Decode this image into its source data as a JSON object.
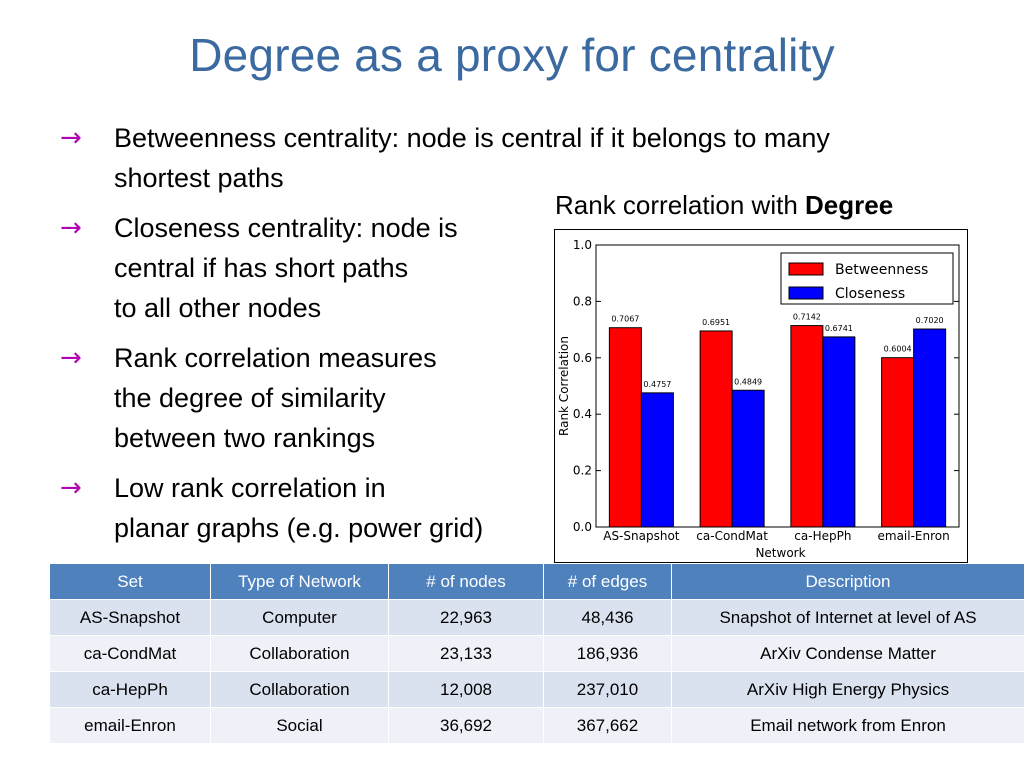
{
  "slide": {
    "title": "Degree as a proxy for centrality",
    "bullets": [
      {
        "lines": [
          "Betweenness centrality: node is central if it belongs to many",
          "shortest paths"
        ]
      },
      {
        "lines": [
          "Closeness centrality: node is",
          "central if has short paths",
          "to all other nodes"
        ]
      },
      {
        "lines": [
          "Rank correlation measures",
          "the degree of similarity",
          "between two rankings"
        ]
      },
      {
        "lines": [
          "Low rank correlation in",
          "planar graphs (e.g. power grid)"
        ]
      }
    ],
    "bullet_icon": "arrow-icon",
    "bullet_arrow_glyph": "→",
    "bullet_color": "#b400b4",
    "chart_caption_prefix": "Rank correlation with ",
    "chart_caption_bold": "Degree"
  },
  "chart_data": {
    "type": "bar",
    "xlabel": "Network",
    "ylabel": "Rank Correlation",
    "ylim": [
      0.0,
      1.0
    ],
    "yticks": [
      "0.0",
      "0.2",
      "0.4",
      "0.6",
      "0.8",
      "1.0"
    ],
    "categories": [
      "AS-Snapshot",
      "ca-CondMat",
      "ca-HepPh",
      "email-Enron"
    ],
    "series": [
      {
        "name": "Betweenness",
        "color": "#ff0000",
        "values": [
          0.7067,
          0.6951,
          0.7142,
          0.6004
        ],
        "labels": [
          "0.7067",
          "0.6951",
          "0.7142",
          "0.6004"
        ]
      },
      {
        "name": "Closeness",
        "color": "#0000ff",
        "values": [
          0.4757,
          0.4849,
          0.6741,
          0.702
        ],
        "labels": [
          "0.4757",
          "0.4849",
          "0.6741",
          "0.7020"
        ]
      }
    ],
    "legend_position": "top-right",
    "grid": false
  },
  "table": {
    "header_color": "#4f81bd",
    "headers": [
      "Set",
      "Type of Network",
      "# of nodes",
      "# of edges",
      "Description"
    ],
    "rows": [
      [
        "AS-Snapshot",
        "Computer",
        "22,963",
        "48,436",
        "Snapshot of Internet at level of AS"
      ],
      [
        "ca-CondMat",
        "Collaboration",
        "23,133",
        "186,936",
        "ArXiv Condense Matter"
      ],
      [
        "ca-HepPh",
        "Collaboration",
        "12,008",
        "237,010",
        "ArXiv High Energy Physics"
      ],
      [
        "email-Enron",
        "Social",
        "36,692",
        "367,662",
        "Email network from Enron"
      ]
    ]
  }
}
